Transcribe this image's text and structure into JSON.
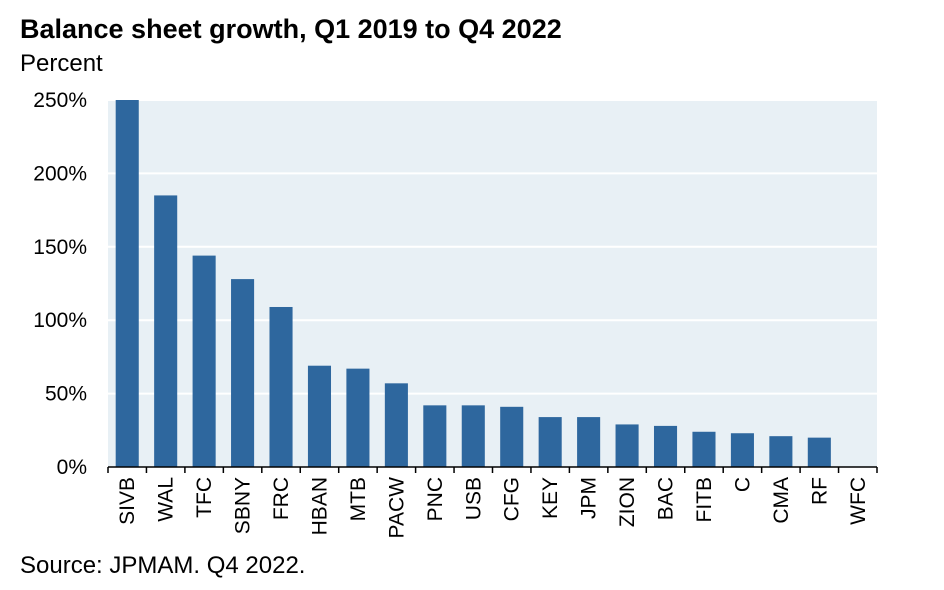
{
  "chart_data": {
    "type": "bar",
    "title": "Balance sheet growth, Q1 2019 to Q4 2022",
    "subtitle": "Percent",
    "source": "Source: JPMAM. Q4 2022.",
    "categories": [
      "SIVB",
      "WAL",
      "TFC",
      "SBNY",
      "FRC",
      "HBAN",
      "MTB",
      "PACW",
      "PNC",
      "USB",
      "CFG",
      "KEY",
      "JPM",
      "ZION",
      "BAC",
      "FITB",
      "C",
      "CMA",
      "RF",
      "WFC"
    ],
    "values": [
      250,
      185,
      144,
      128,
      109,
      69,
      67,
      57,
      42,
      42,
      41,
      34,
      34,
      29,
      28,
      24,
      23,
      21,
      20,
      0
    ],
    "ylim": [
      0,
      250
    ],
    "yticks": [
      0,
      50,
      100,
      150,
      200,
      250
    ],
    "ytick_labels": [
      "0%",
      "50%",
      "100%",
      "150%",
      "200%",
      "250%"
    ],
    "grid": true,
    "colors": {
      "bar": "#2e679e",
      "plot_bg": "#e8f0f5",
      "grid": "#ffffff"
    }
  }
}
